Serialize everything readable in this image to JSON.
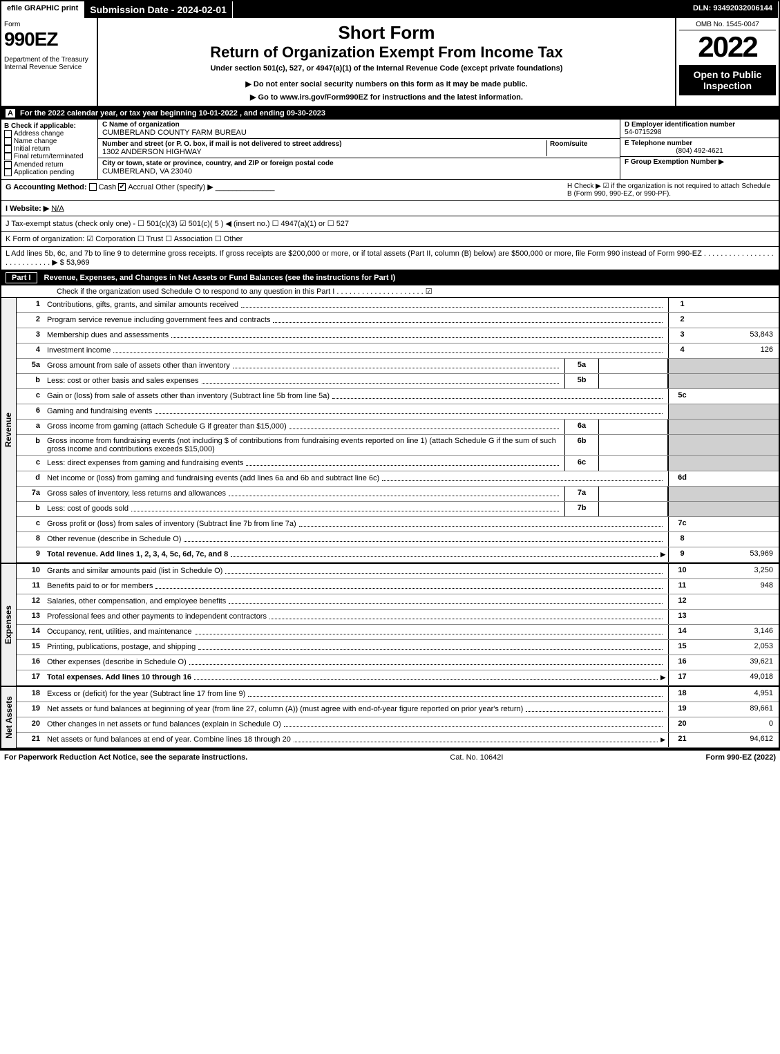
{
  "top": {
    "efile": "efile GRAPHIC print",
    "sub_date_label": "Submission Date - 2024-02-01",
    "dln": "DLN: 93492032006144"
  },
  "header": {
    "form_word": "Form",
    "form_num": "990EZ",
    "dept": "Department of the Treasury\nInternal Revenue Service",
    "short": "Short Form",
    "title2": "Return of Organization Exempt From Income Tax",
    "under": "Under section 501(c), 527, or 4947(a)(1) of the Internal Revenue Code (except private foundations)",
    "note1": "▶ Do not enter social security numbers on this form as it may be made public.",
    "note2": "▶ Go to www.irs.gov/Form990EZ for instructions and the latest information.",
    "omb": "OMB No. 1545-0047",
    "year": "2022",
    "open": "Open to Public Inspection"
  },
  "row_a": "For the 2022 calendar year, or tax year beginning 10-01-2022 , and ending 09-30-2023",
  "b": {
    "label": "Check if applicable:",
    "opts": [
      "Address change",
      "Name change",
      "Initial return",
      "Final return/terminated",
      "Amended return",
      "Application pending"
    ]
  },
  "c": {
    "name_label": "C Name of organization",
    "name": "CUMBERLAND COUNTY FARM BUREAU",
    "addr_label": "Number and street (or P. O. box, if mail is not delivered to street address)",
    "addr": "1302 ANDERSON HIGHWAY",
    "room_label": "Room/suite",
    "city_label": "City or town, state or province, country, and ZIP or foreign postal code",
    "city": "CUMBERLAND, VA  23040"
  },
  "d": {
    "ein_label": "D Employer identification number",
    "ein": "54-0715298",
    "tel_label": "E Telephone number",
    "tel": "(804) 492-4621",
    "grp_label": "F Group Exemption Number   ▶"
  },
  "g": {
    "label": "G Accounting Method:",
    "cash": "Cash",
    "accrual": "Accrual",
    "other": "Other (specify) ▶",
    "h": "H  Check ▶ ☑ if the organization is not required to attach Schedule B (Form 990, 990-EZ, or 990-PF)."
  },
  "i": {
    "label": "I Website: ▶",
    "val": "N/A"
  },
  "j": {
    "label": "J Tax-exempt status (check only one) -  ☐ 501(c)(3) ☑ 501(c)( 5 ) ◀ (insert no.) ☐ 4947(a)(1) or ☐ 527"
  },
  "k": {
    "label": "K Form of organization:  ☑ Corporation   ☐ Trust   ☐ Association   ☐ Other"
  },
  "l": {
    "text": "L Add lines 5b, 6c, and 7b to line 9 to determine gross receipts. If gross receipts are $200,000 or more, or if total assets (Part II, column (B) below) are $500,000 or more, file Form 990 instead of Form 990-EZ  . . . . . . . . . . . . . . . . . . . . . . . . . . . .  ▶ $",
    "amt": "53,969"
  },
  "part1": {
    "label": "Part I",
    "title": "Revenue, Expenses, and Changes in Net Assets or Fund Balances (see the instructions for Part I)",
    "sub": "Check if the organization used Schedule O to respond to any question in this Part I . . . . . . . . . . . . . . . . . . . . . ☑"
  },
  "sections": {
    "revenue": "Revenue",
    "expenses": "Expenses",
    "netassets": "Net Assets"
  },
  "lines": [
    {
      "n": "1",
      "d": "Contributions, gifts, grants, and similar amounts received",
      "r": "1",
      "a": ""
    },
    {
      "n": "2",
      "d": "Program service revenue including government fees and contracts",
      "r": "2",
      "a": ""
    },
    {
      "n": "3",
      "d": "Membership dues and assessments",
      "r": "3",
      "a": "53,843"
    },
    {
      "n": "4",
      "d": "Investment income",
      "r": "4",
      "a": "126"
    },
    {
      "n": "5a",
      "d": "Gross amount from sale of assets other than inventory",
      "sb": "5a",
      "sv": "",
      "shade": true
    },
    {
      "n": "b",
      "d": "Less: cost or other basis and sales expenses",
      "sb": "5b",
      "sv": "",
      "shade": true
    },
    {
      "n": "c",
      "d": "Gain or (loss) from sale of assets other than inventory (Subtract line 5b from line 5a)",
      "r": "5c",
      "a": ""
    },
    {
      "n": "6",
      "d": "Gaming and fundraising events",
      "shade": true
    },
    {
      "n": "a",
      "d": "Gross income from gaming (attach Schedule G if greater than $15,000)",
      "sb": "6a",
      "sv": "",
      "shade": true
    },
    {
      "n": "b",
      "d": "Gross income from fundraising events (not including $                 of contributions from fundraising events reported on line 1) (attach Schedule G if the sum of such gross income and contributions exceeds $15,000)",
      "sb": "6b",
      "sv": "",
      "shade": true
    },
    {
      "n": "c",
      "d": "Less: direct expenses from gaming and fundraising events",
      "sb": "6c",
      "sv": "",
      "shade": true
    },
    {
      "n": "d",
      "d": "Net income or (loss) from gaming and fundraising events (add lines 6a and 6b and subtract line 6c)",
      "r": "6d",
      "a": ""
    },
    {
      "n": "7a",
      "d": "Gross sales of inventory, less returns and allowances",
      "sb": "7a",
      "sv": "",
      "shade": true
    },
    {
      "n": "b",
      "d": "Less: cost of goods sold",
      "sb": "7b",
      "sv": "",
      "shade": true
    },
    {
      "n": "c",
      "d": "Gross profit or (loss) from sales of inventory (Subtract line 7b from line 7a)",
      "r": "7c",
      "a": ""
    },
    {
      "n": "8",
      "d": "Other revenue (describe in Schedule O)",
      "r": "8",
      "a": ""
    },
    {
      "n": "9",
      "d": "Total revenue. Add lines 1, 2, 3, 4, 5c, 6d, 7c, and 8",
      "r": "9",
      "a": "53,969",
      "bold": true,
      "arrow": true
    }
  ],
  "exp_lines": [
    {
      "n": "10",
      "d": "Grants and similar amounts paid (list in Schedule O)",
      "r": "10",
      "a": "3,250"
    },
    {
      "n": "11",
      "d": "Benefits paid to or for members",
      "r": "11",
      "a": "948"
    },
    {
      "n": "12",
      "d": "Salaries, other compensation, and employee benefits",
      "r": "12",
      "a": ""
    },
    {
      "n": "13",
      "d": "Professional fees and other payments to independent contractors",
      "r": "13",
      "a": ""
    },
    {
      "n": "14",
      "d": "Occupancy, rent, utilities, and maintenance",
      "r": "14",
      "a": "3,146"
    },
    {
      "n": "15",
      "d": "Printing, publications, postage, and shipping",
      "r": "15",
      "a": "2,053"
    },
    {
      "n": "16",
      "d": "Other expenses (describe in Schedule O)",
      "r": "16",
      "a": "39,621"
    },
    {
      "n": "17",
      "d": "Total expenses. Add lines 10 through 16",
      "r": "17",
      "a": "49,018",
      "bold": true,
      "arrow": true
    }
  ],
  "na_lines": [
    {
      "n": "18",
      "d": "Excess or (deficit) for the year (Subtract line 17 from line 9)",
      "r": "18",
      "a": "4,951"
    },
    {
      "n": "19",
      "d": "Net assets or fund balances at beginning of year (from line 27, column (A)) (must agree with end-of-year figure reported on prior year's return)",
      "r": "19",
      "a": "89,661"
    },
    {
      "n": "20",
      "d": "Other changes in net assets or fund balances (explain in Schedule O)",
      "r": "20",
      "a": "0"
    },
    {
      "n": "21",
      "d": "Net assets or fund balances at end of year. Combine lines 18 through 20",
      "r": "21",
      "a": "94,612",
      "arrow": true
    }
  ],
  "footer": {
    "left": "For Paperwork Reduction Act Notice, see the separate instructions.",
    "mid": "Cat. No. 10642I",
    "right": "Form 990-EZ (2022)"
  }
}
